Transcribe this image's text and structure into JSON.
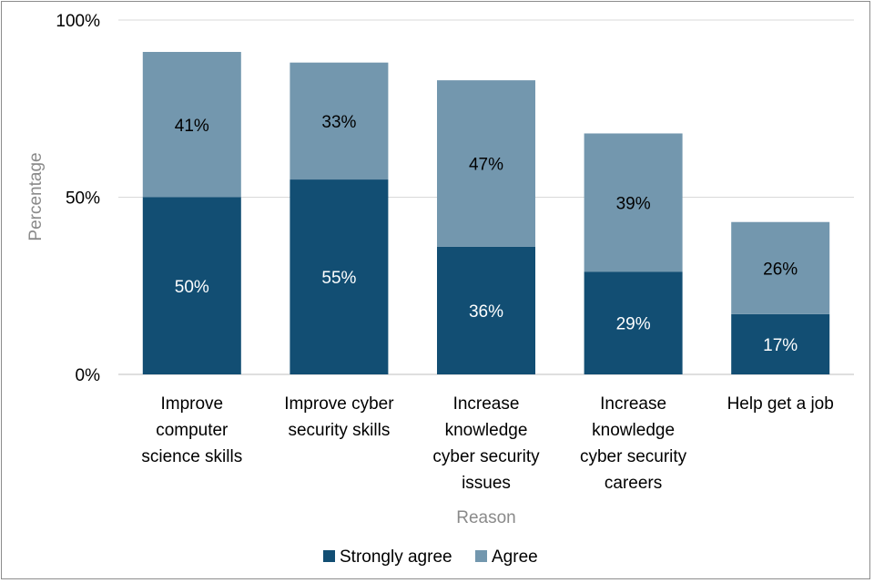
{
  "chart_data": {
    "type": "bar",
    "stacked": true,
    "categories": [
      [
        "Improve",
        "computer",
        "science skills"
      ],
      [
        "Improve cyber",
        "security skills"
      ],
      [
        "Increase",
        "knowledge",
        "cyber security",
        "issues"
      ],
      [
        "Increase",
        "knowledge",
        "cyber security",
        "careers"
      ],
      [
        "Help get a job"
      ]
    ],
    "series": [
      {
        "name": "Strongly agree",
        "values": [
          50,
          55,
          36,
          29,
          17
        ],
        "color": "#124e73",
        "label_color": "#ffffff"
      },
      {
        "name": "Agree",
        "values": [
          41,
          33,
          47,
          39,
          26
        ],
        "color": "#7397ae",
        "label_color": "#000000"
      }
    ],
    "data_labels": [
      [
        "50%",
        "55%",
        "36%",
        "29%",
        "17%"
      ],
      [
        "41%",
        "33%",
        "47%",
        "39%",
        "26%"
      ]
    ],
    "yticks": [
      "0%",
      "50%",
      "100%"
    ],
    "ytick_values": [
      0,
      50,
      100
    ],
    "ylim": [
      0,
      100
    ],
    "xlabel": "Reason",
    "ylabel": "Percentage",
    "grid": true,
    "legend_position": "bottom"
  }
}
